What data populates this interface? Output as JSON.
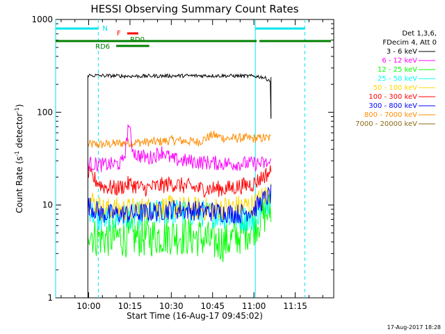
{
  "chart_data": {
    "type": "line",
    "title": "HESSI Observing Summary Count Rates",
    "xlabel": "Start Time (16-Aug-17 09:45:02)",
    "ylabel_main": "Count Rate (s",
    "ylabel_sup1": "-1",
    "ylabel_mid": " detector",
    "ylabel_sup2": "-1",
    "ylabel_end": ")",
    "y_scale": "log",
    "ylim": [
      1,
      1000
    ],
    "xlim_minutes": [
      -12,
      89
    ],
    "x_start": "09:48",
    "x_ticks": [
      {
        "m": 0,
        "label": "10:00"
      },
      {
        "m": 15,
        "label": "10:15"
      },
      {
        "m": 30,
        "label": "10:30"
      },
      {
        "m": 45,
        "label": "10:45"
      },
      {
        "m": 60,
        "label": "11:00"
      },
      {
        "m": 75,
        "label": "11:15"
      }
    ],
    "y_ticks": [
      {
        "v": 1,
        "label": "1"
      },
      {
        "v": 10,
        "label": "10"
      },
      {
        "v": 100,
        "label": "100"
      },
      {
        "v": 1000,
        "label": "1000"
      }
    ],
    "legend_header": [
      "Det 1,3,6,",
      "FDecim 4, Att 0"
    ],
    "legend_position": "right",
    "series": [
      {
        "name": "3 - 6 keV",
        "color": "#000000",
        "values": [
          [
            -0.3,
            250
          ],
          [
            5,
            248
          ],
          [
            15,
            245
          ],
          [
            30,
            247
          ],
          [
            45,
            248
          ],
          [
            60,
            245
          ],
          [
            63,
            240
          ],
          [
            66,
            220
          ],
          [
            66.2,
            85
          ]
        ]
      },
      {
        "name": "6 - 12 keV",
        "color": "#ff00ff",
        "values": [
          [
            -0.3,
            28
          ],
          [
            5,
            27
          ],
          [
            12,
            28
          ],
          [
            13.5,
            40
          ],
          [
            14.5,
            80
          ],
          [
            15.5,
            45
          ],
          [
            17,
            35
          ],
          [
            22,
            32
          ],
          [
            27,
            38
          ],
          [
            30,
            31
          ],
          [
            40,
            29
          ],
          [
            50,
            28
          ],
          [
            60,
            28
          ],
          [
            66.2,
            28
          ]
        ]
      },
      {
        "name": "12 - 25 keV",
        "color": "#00ff00",
        "values": [
          [
            -0.3,
            6
          ],
          [
            2,
            4.5
          ],
          [
            10,
            4.5
          ],
          [
            20,
            4.5
          ],
          [
            30,
            4.8
          ],
          [
            40,
            4.5
          ],
          [
            45,
            4
          ],
          [
            50,
            4
          ],
          [
            55,
            4.8
          ],
          [
            60,
            6
          ],
          [
            63,
            7.5
          ],
          [
            66.2,
            9
          ]
        ]
      },
      {
        "name": "25 - 50 keV",
        "color": "#00ffff",
        "values": [
          [
            -0.3,
            10
          ],
          [
            3,
            7
          ],
          [
            15,
            7.5
          ],
          [
            30,
            8.5
          ],
          [
            45,
            8
          ],
          [
            60,
            7
          ],
          [
            63,
            10
          ],
          [
            66.2,
            12
          ]
        ]
      },
      {
        "name": "50 - 100 keV",
        "color": "#ffd700",
        "values": [
          [
            -0.3,
            12
          ],
          [
            5,
            9
          ],
          [
            15,
            9
          ],
          [
            30,
            9.5
          ],
          [
            45,
            9
          ],
          [
            60,
            10
          ],
          [
            63,
            12
          ],
          [
            66.2,
            14
          ]
        ]
      },
      {
        "name": "100 - 300 keV",
        "color": "#ff0000",
        "values": [
          [
            -0.3,
            22
          ],
          [
            5,
            16
          ],
          [
            10,
            15
          ],
          [
            15,
            17
          ],
          [
            20,
            15
          ],
          [
            30,
            17
          ],
          [
            40,
            15
          ],
          [
            50,
            15
          ],
          [
            60,
            17
          ],
          [
            63,
            20
          ],
          [
            66.2,
            23
          ]
        ]
      },
      {
        "name": "300 - 800 keV",
        "color": "#0000ff",
        "values": [
          [
            -0.3,
            10
          ],
          [
            5,
            8
          ],
          [
            15,
            8
          ],
          [
            25,
            8.5
          ],
          [
            30,
            9
          ],
          [
            45,
            8.5
          ],
          [
            55,
            8
          ],
          [
            60,
            9
          ],
          [
            63,
            11
          ],
          [
            66.2,
            13
          ]
        ]
      },
      {
        "name": "800 - 7000 keV",
        "color": "#ff8c00",
        "values": [
          [
            -0.3,
            45
          ],
          [
            5,
            45
          ],
          [
            15,
            47
          ],
          [
            25,
            48
          ],
          [
            30,
            50
          ],
          [
            40,
            48
          ],
          [
            45,
            57
          ],
          [
            50,
            52
          ],
          [
            55,
            53
          ],
          [
            60,
            52
          ],
          [
            66.2,
            53
          ]
        ]
      },
      {
        "name": "7000 - 20000 keV",
        "color": "#8b6914",
        "values": []
      }
    ],
    "markers": {
      "cyan_vlines_solid": [
        -12,
        60.5
      ],
      "cyan_vlines_dashed": [
        3.5,
        78.5
      ],
      "night_bars": [
        [
          -12,
          3.5
        ],
        [
          60.5,
          78.5
        ]
      ],
      "night_label": "N",
      "flare_label": "F",
      "flare_bar": [
        14,
        18
      ],
      "rd0_label": "RD0",
      "rd0_bar": [
        14.5,
        22
      ],
      "rd6_label": "RD6",
      "rd6_bar": [
        10,
        22
      ],
      "green_saa_bars": [
        [
          -12,
          61
        ],
        [
          62,
          88
        ]
      ]
    }
  },
  "footer_date": "17-Aug-2017 18:28"
}
